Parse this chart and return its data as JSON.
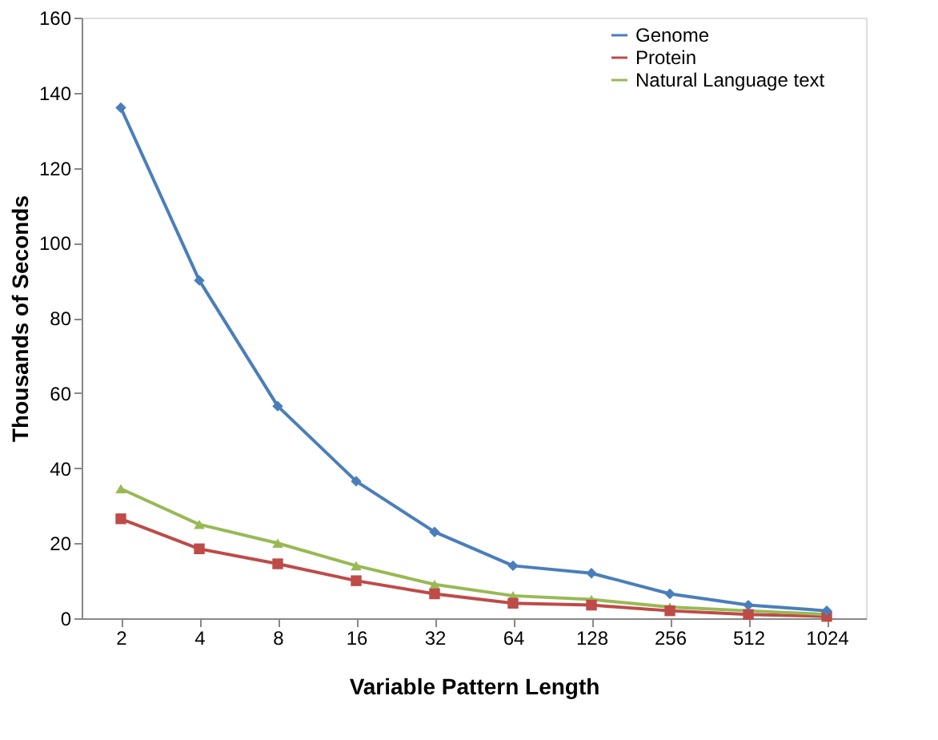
{
  "chart_data": {
    "type": "line",
    "xlabel": "Variable Pattern Length",
    "ylabel": "Thousands of Seconds",
    "categories": [
      "2",
      "4",
      "8",
      "16",
      "32",
      "64",
      "128",
      "256",
      "512",
      "1024"
    ],
    "series": [
      {
        "name": "Genome",
        "color": "#4a7ebb",
        "marker": "diamond",
        "values": [
          136,
          90,
          56.5,
          36.5,
          23,
          14,
          12,
          6.5,
          3.5,
          2
        ]
      },
      {
        "name": "Protein",
        "color": "#be4b48",
        "marker": "square",
        "values": [
          26.5,
          18.5,
          14.5,
          10,
          6.5,
          4,
          3.5,
          2,
          1,
          0.5
        ]
      },
      {
        "name": "Natural Language text",
        "color": "#98b954",
        "marker": "triangle",
        "values": [
          34.5,
          25,
          20,
          14,
          9,
          6,
          5,
          3,
          2,
          1
        ]
      }
    ],
    "ylim": [
      0,
      160
    ],
    "yticks": [
      0,
      20,
      40,
      60,
      80,
      100,
      120,
      140,
      160
    ],
    "grid": false,
    "legend": "top right",
    "line_style": "solid"
  }
}
